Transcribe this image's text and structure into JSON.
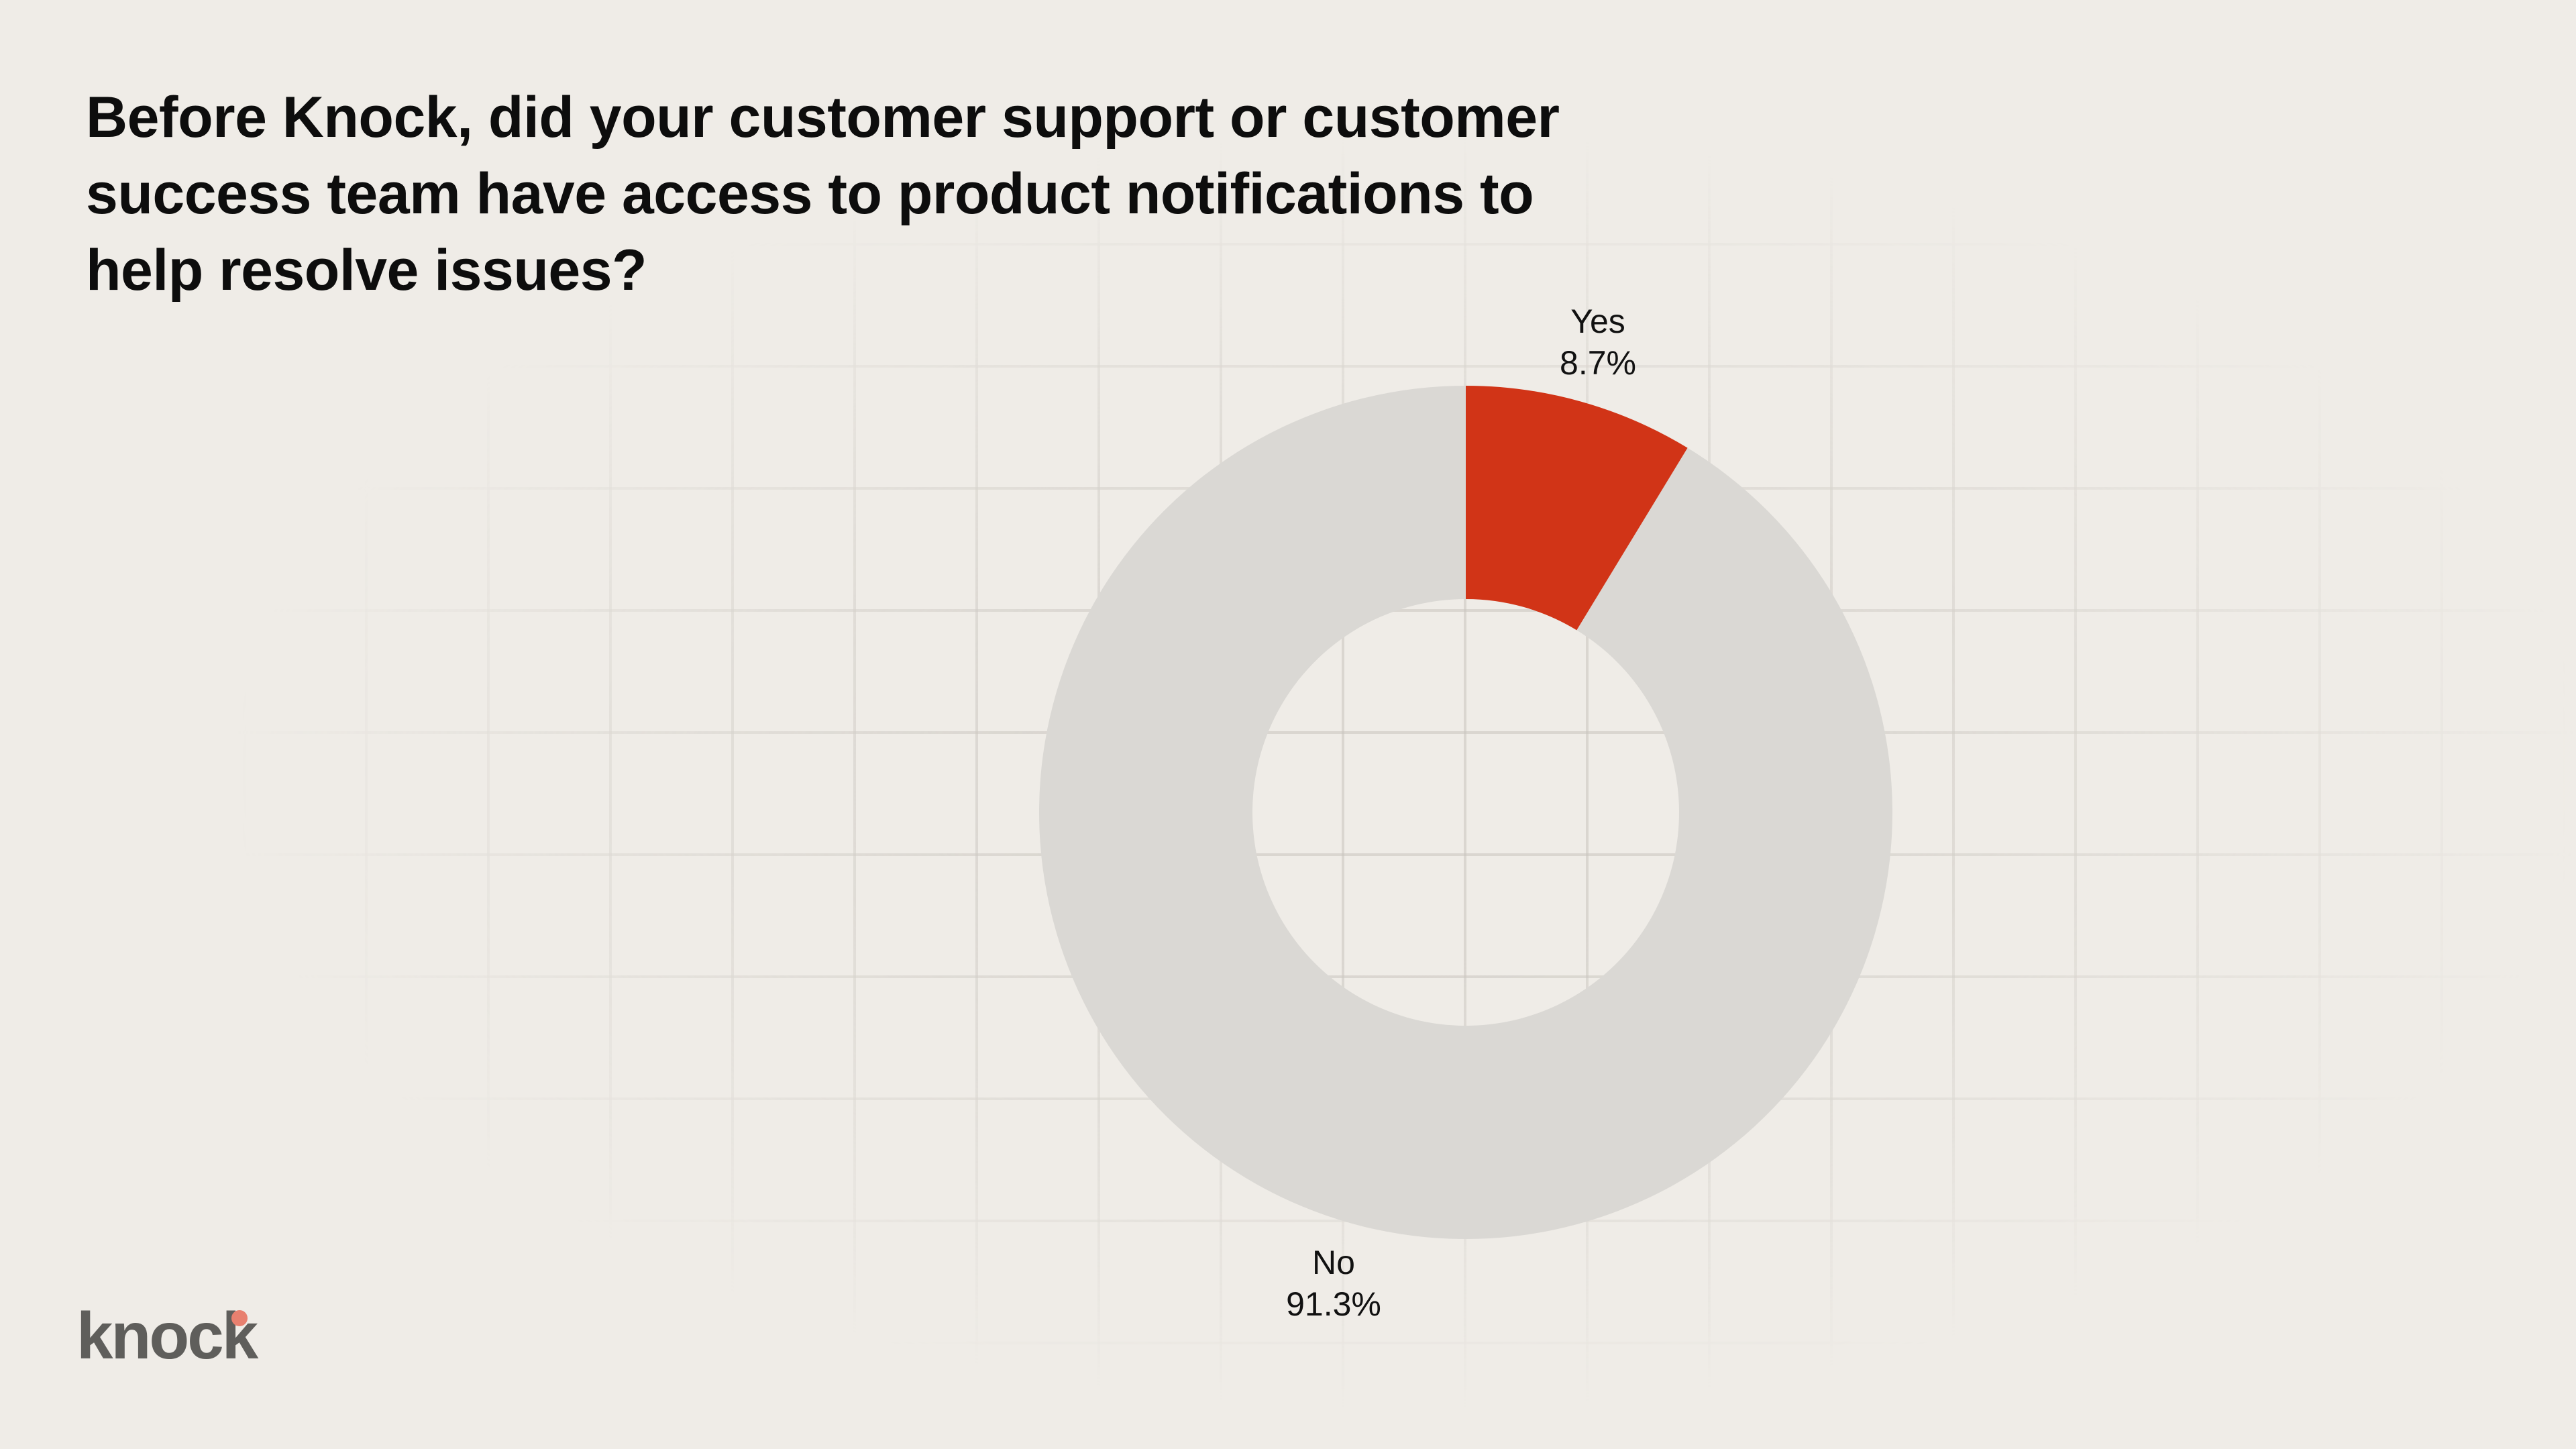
{
  "title": {
    "lines": [
      "Before Knock, did your customer support or customer",
      "success team have access to product notifications to",
      "help resolve issues?"
    ]
  },
  "labels": {
    "yes": {
      "name": "Yes",
      "value": "8.7%"
    },
    "no": {
      "name": "No",
      "value": "91.3%"
    }
  },
  "logo": {
    "text": "knock"
  },
  "colors": {
    "background": "#efece7",
    "grid": "#e3e0db",
    "yes": "#d13417",
    "no": "#dad8d4",
    "logo_text": "#5f5e5b",
    "logo_dot": "#e8806f"
  },
  "chart_data": {
    "type": "pie",
    "subtype": "donut",
    "title": "Before Knock, did your customer support or customer success team have access to product notifications to help resolve issues?",
    "categories": [
      "Yes",
      "No"
    ],
    "values": [
      8.7,
      91.3
    ],
    "unit": "%",
    "colors": [
      "#d13417",
      "#dad8d4"
    ],
    "start_angle": "12 o'clock, clockwise",
    "labels_shown": [
      "Yes 8.7%",
      "No 91.3%"
    ],
    "legend": "none (direct labels)",
    "grid": "decorative background grid"
  }
}
